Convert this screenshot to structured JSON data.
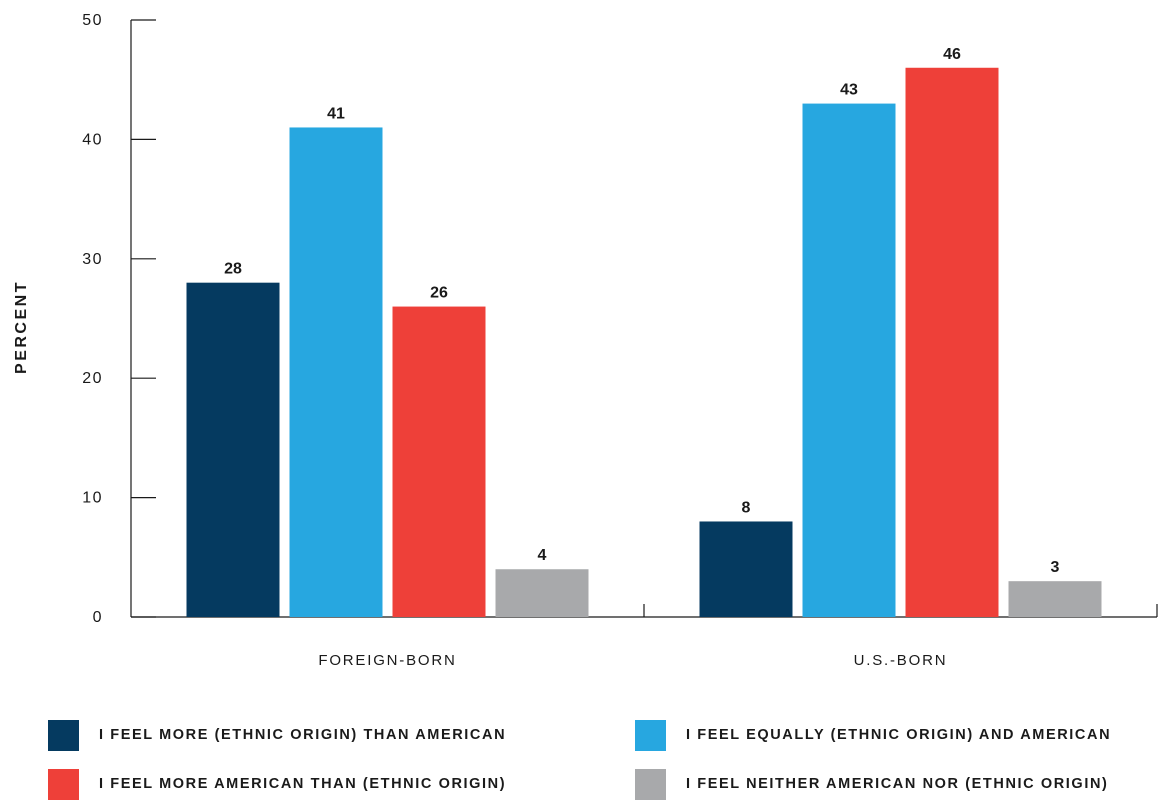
{
  "chart_data": {
    "type": "bar",
    "ylabel": "PERCENT",
    "ylim": [
      0,
      50
    ],
    "yticks": [
      0,
      10,
      20,
      30,
      40,
      50
    ],
    "categories": [
      "FOREIGN-BORN",
      "U.S.-BORN"
    ],
    "series": [
      {
        "name": "I FEEL MORE (ETHNIC ORIGIN) THAN AMERICAN",
        "color": "#053a60",
        "values": [
          28,
          8
        ]
      },
      {
        "name": "I FEEL EQUALLY (ETHNIC ORIGIN) AND AMERICAN",
        "color": "#27a7e0",
        "values": [
          41,
          43
        ]
      },
      {
        "name": "I FEEL MORE AMERICAN THAN (ETHNIC ORIGIN)",
        "color": "#ee4039",
        "values": [
          26,
          46
        ]
      },
      {
        "name": "I FEEL NEITHER AMERICAN NOR (ETHNIC ORIGIN)",
        "color": "#a8a9ab",
        "values": [
          4,
          3
        ]
      }
    ],
    "legend_position": "bottom",
    "grid": false
  }
}
